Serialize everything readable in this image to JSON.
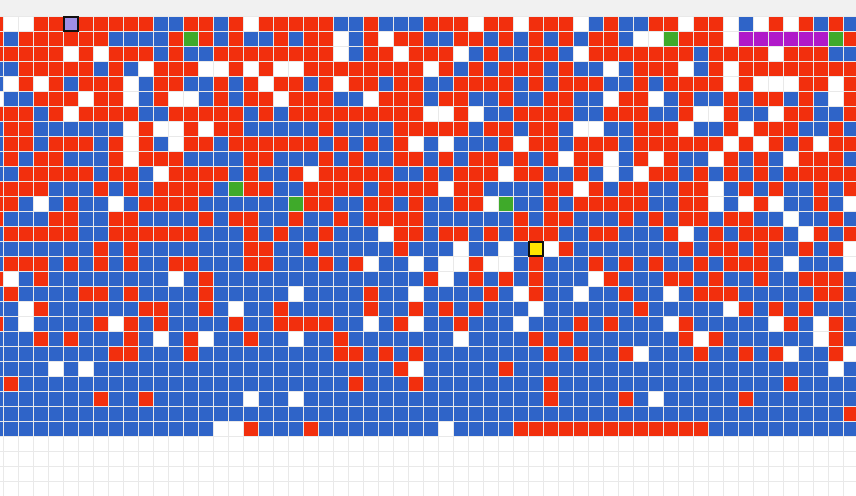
{
  "game": {
    "grid": {
      "columns": 58,
      "rows": 32,
      "filled_rows": 28,
      "colors": {
        "red": "#f22f0d",
        "blue": "#2f64c8",
        "empty": "#ffffff",
        "green": "#3faa2a",
        "magenta": "#b019c9",
        "yellow": "#ffe600",
        "lavender": "#9f8fe6",
        "grid_line": "#e9e9e9",
        "outline": "#111111"
      },
      "special_tiles": [
        {
          "kind": "lavender",
          "row": 0,
          "col": 5,
          "outlined": true
        },
        {
          "kind": "green",
          "row": 1,
          "col": 13
        },
        {
          "kind": "green",
          "row": 1,
          "col": 45
        },
        {
          "kind": "green",
          "row": 1,
          "col": 56
        },
        {
          "kind": "magenta",
          "row": 1,
          "col": 50
        },
        {
          "kind": "magenta",
          "row": 1,
          "col": 51
        },
        {
          "kind": "magenta",
          "row": 1,
          "col": 52
        },
        {
          "kind": "magenta",
          "row": 1,
          "col": 53
        },
        {
          "kind": "magenta",
          "row": 1,
          "col": 54
        },
        {
          "kind": "magenta",
          "row": 1,
          "col": 55
        },
        {
          "kind": "green",
          "row": 11,
          "col": 16
        },
        {
          "kind": "green",
          "row": 12,
          "col": 20
        },
        {
          "kind": "green",
          "row": 12,
          "col": 34
        },
        {
          "kind": "yellow",
          "row": 15,
          "col": 36,
          "outlined": true
        }
      ]
    }
  }
}
